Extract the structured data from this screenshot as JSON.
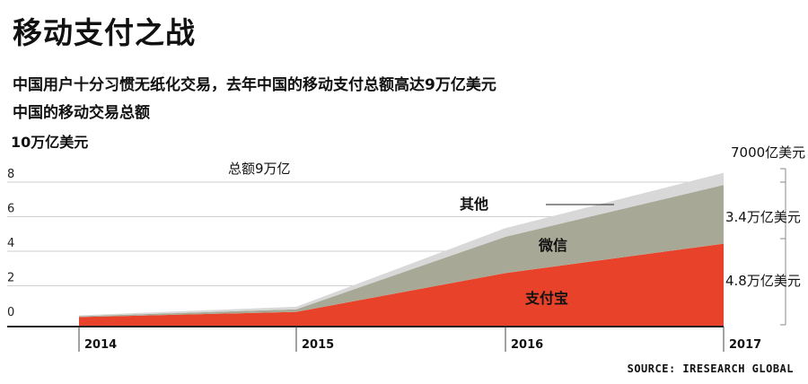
{
  "header": {
    "title": "移动支付之战",
    "subtitle": "中国用户十分习惯无纸化交易，去年中国的移动支付总额高达9万亿美元",
    "chart_heading": "中国的移动交易总额",
    "unit_label": "10万亿美元"
  },
  "source": "SOURCE: IRESEARCH GLOBAL",
  "colors": {
    "alipay": "#e8432a",
    "wechat": "#a8a896",
    "other": "#d8d8d8"
  },
  "chart_data": {
    "type": "area",
    "stacked": true,
    "x": [
      "2014",
      "2015",
      "2016",
      "2017"
    ],
    "ylim": [
      0,
      10
    ],
    "yticks": [
      0,
      2,
      4,
      6,
      8
    ],
    "grid": true,
    "series": [
      {
        "name": "支付宝",
        "values": [
          0.55,
          0.85,
          3.1,
          4.8
        ]
      },
      {
        "name": "微信",
        "values": [
          0.05,
          0.15,
          2.1,
          3.4
        ]
      },
      {
        "name": "其他",
        "values": [
          0.05,
          0.15,
          0.5,
          0.7
        ]
      }
    ],
    "annotations": {
      "total": "总额9万亿",
      "alipay_2017": "4.8万亿美元",
      "wechat_2017": "3.4万亿美元",
      "other_2017": "7000亿美元"
    }
  }
}
